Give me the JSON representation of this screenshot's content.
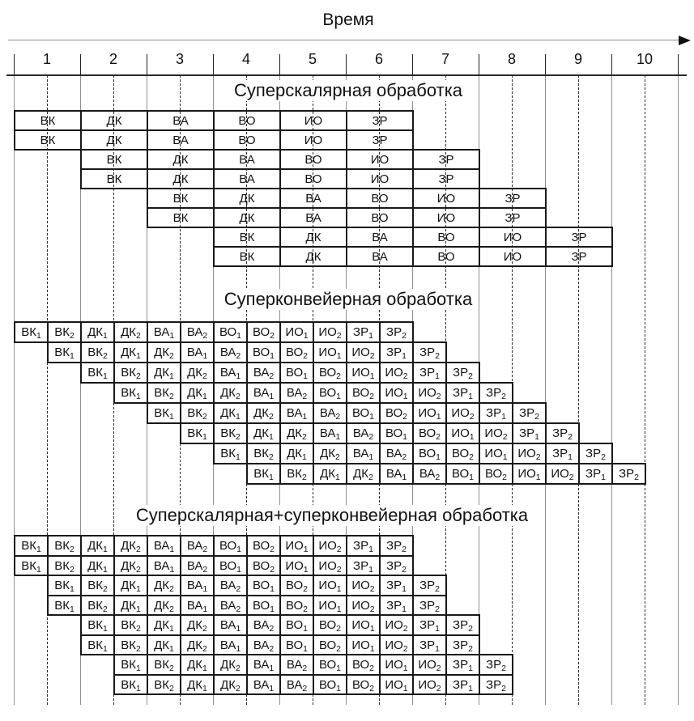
{
  "axis": {
    "title": "Время",
    "tick_labels": [
      "1",
      "2",
      "3",
      "4",
      "5",
      "6",
      "7",
      "8",
      "9",
      "10"
    ]
  },
  "colors": {
    "ink": "#111111",
    "grid_solid": "#909090",
    "grid_dashed": "#2b2b2b",
    "background": "#ffffff"
  },
  "sections": [
    {
      "id": "superscalar",
      "title": "Суперскалярная обработка",
      "stages": [
        {
          "label": "ВК",
          "sub": ""
        },
        {
          "label": "ДК",
          "sub": ""
        },
        {
          "label": "ВА",
          "sub": ""
        },
        {
          "label": "ВО",
          "sub": ""
        },
        {
          "label": "ИО",
          "sub": ""
        },
        {
          "label": "ЗР",
          "sub": ""
        }
      ],
      "row_start_half_units": [
        0,
        0,
        2,
        2,
        4,
        4,
        6,
        6
      ],
      "cell_span_half_units": 2
    },
    {
      "id": "superpipelined",
      "title": "Суперконвейерная обработка",
      "stages": [
        {
          "label": "ВК",
          "sub": "1"
        },
        {
          "label": "ВК",
          "sub": "2"
        },
        {
          "label": "ДК",
          "sub": "1"
        },
        {
          "label": "ДК",
          "sub": "2"
        },
        {
          "label": "ВА",
          "sub": "1"
        },
        {
          "label": "ВА",
          "sub": "2"
        },
        {
          "label": "ВО",
          "sub": "1"
        },
        {
          "label": "ВО",
          "sub": "2"
        },
        {
          "label": "ИО",
          "sub": "1"
        },
        {
          "label": "ИО",
          "sub": "2"
        },
        {
          "label": "ЗР",
          "sub": "1"
        },
        {
          "label": "ЗР",
          "sub": "2"
        }
      ],
      "row_start_half_units": [
        0,
        1,
        2,
        3,
        4,
        5,
        6,
        7
      ],
      "cell_span_half_units": 1
    },
    {
      "id": "superscalar-superpipelined",
      "title": "Суперскалярная+суперконвейерная обработка",
      "stages": [
        {
          "label": "ВК",
          "sub": "1"
        },
        {
          "label": "ВК",
          "sub": "2"
        },
        {
          "label": "ДК",
          "sub": "1"
        },
        {
          "label": "ДК",
          "sub": "2"
        },
        {
          "label": "ВА",
          "sub": "1"
        },
        {
          "label": "ВА",
          "sub": "2"
        },
        {
          "label": "ВО",
          "sub": "1"
        },
        {
          "label": "ВО",
          "sub": "2"
        },
        {
          "label": "ИО",
          "sub": "1"
        },
        {
          "label": "ИО",
          "sub": "2"
        },
        {
          "label": "ЗР",
          "sub": "1"
        },
        {
          "label": "ЗР",
          "sub": "2"
        }
      ],
      "row_start_half_units": [
        0,
        0,
        1,
        1,
        2,
        2,
        3,
        3
      ],
      "cell_span_half_units": 1
    }
  ]
}
